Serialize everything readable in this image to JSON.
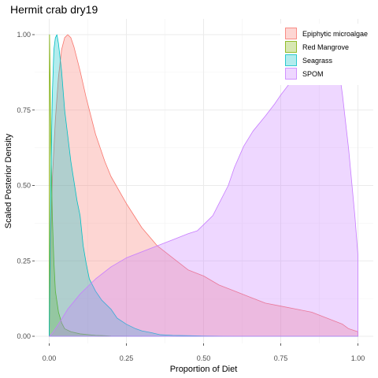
{
  "chart_data": {
    "type": "area",
    "title": "Hermit crab dry19",
    "xlabel": "Proportion of Diet",
    "ylabel": "Scaled Posterior Density",
    "xlim": [
      0,
      1
    ],
    "ylim": [
      0,
      1
    ],
    "x_ticks": [
      "0.00",
      "0.25",
      "0.50",
      "0.75",
      "1.00"
    ],
    "y_ticks": [
      "0.00",
      "0.25",
      "0.50",
      "0.75",
      "1.00"
    ],
    "grid": true,
    "legend_position": "top-right",
    "series": [
      {
        "name": "Epiphytic microalgae",
        "fill": "#f8766d",
        "points": [
          [
            0,
            0
          ],
          [
            0.005,
            0.33
          ],
          [
            0.01,
            0.52
          ],
          [
            0.02,
            0.72
          ],
          [
            0.03,
            0.86
          ],
          [
            0.04,
            0.95
          ],
          [
            0.05,
            0.99
          ],
          [
            0.06,
            1.0
          ],
          [
            0.07,
            0.99
          ],
          [
            0.08,
            0.96
          ],
          [
            0.1,
            0.88
          ],
          [
            0.12,
            0.79
          ],
          [
            0.15,
            0.67
          ],
          [
            0.18,
            0.58
          ],
          [
            0.2,
            0.53
          ],
          [
            0.25,
            0.44
          ],
          [
            0.3,
            0.36
          ],
          [
            0.35,
            0.3
          ],
          [
            0.4,
            0.26
          ],
          [
            0.45,
            0.22
          ],
          [
            0.5,
            0.2
          ],
          [
            0.55,
            0.17
          ],
          [
            0.6,
            0.15
          ],
          [
            0.65,
            0.13
          ],
          [
            0.7,
            0.11
          ],
          [
            0.75,
            0.1
          ],
          [
            0.8,
            0.09
          ],
          [
            0.85,
            0.08
          ],
          [
            0.9,
            0.06
          ],
          [
            0.95,
            0.04
          ],
          [
            0.97,
            0.025
          ],
          [
            1.0,
            0.015
          ]
        ]
      },
      {
        "name": "Red Mangrove",
        "fill": "#7cae00",
        "points": [
          [
            0,
            0
          ],
          [
            0.001,
            1.0
          ],
          [
            0.003,
            0.85
          ],
          [
            0.006,
            0.6
          ],
          [
            0.01,
            0.4
          ],
          [
            0.015,
            0.25
          ],
          [
            0.02,
            0.15
          ],
          [
            0.03,
            0.08
          ],
          [
            0.04,
            0.045
          ],
          [
            0.05,
            0.025
          ],
          [
            0.07,
            0.015
          ],
          [
            0.1,
            0.008
          ],
          [
            0.15,
            0.003
          ],
          [
            0.2,
            0.001
          ],
          [
            0.3,
            0
          ]
        ]
      },
      {
        "name": "Seagrass",
        "fill": "#00bfc4",
        "points": [
          [
            0,
            0
          ],
          [
            0.005,
            0.5
          ],
          [
            0.01,
            0.8
          ],
          [
            0.015,
            0.95
          ],
          [
            0.02,
            0.99
          ],
          [
            0.025,
            1.0
          ],
          [
            0.03,
            0.97
          ],
          [
            0.04,
            0.88
          ],
          [
            0.05,
            0.75
          ],
          [
            0.07,
            0.58
          ],
          [
            0.09,
            0.45
          ],
          [
            0.1,
            0.4
          ],
          [
            0.11,
            0.3
          ],
          [
            0.12,
            0.24
          ],
          [
            0.13,
            0.19
          ],
          [
            0.15,
            0.15
          ],
          [
            0.17,
            0.12
          ],
          [
            0.2,
            0.09
          ],
          [
            0.22,
            0.06
          ],
          [
            0.25,
            0.04
          ],
          [
            0.28,
            0.025
          ],
          [
            0.3,
            0.018
          ],
          [
            0.33,
            0.012
          ],
          [
            0.36,
            0.005
          ],
          [
            0.4,
            0.003
          ],
          [
            0.5,
            0.001
          ],
          [
            0.6,
            0
          ],
          [
            0.7,
            0
          ],
          [
            0.8,
            0
          ],
          [
            0.9,
            0
          ],
          [
            1.0,
            0
          ]
        ]
      },
      {
        "name": "SPOM",
        "fill": "#c77cff",
        "points": [
          [
            0,
            0
          ],
          [
            0.01,
            0.01
          ],
          [
            0.03,
            0.04
          ],
          [
            0.06,
            0.09
          ],
          [
            0.1,
            0.14
          ],
          [
            0.15,
            0.19
          ],
          [
            0.2,
            0.23
          ],
          [
            0.25,
            0.26
          ],
          [
            0.3,
            0.28
          ],
          [
            0.35,
            0.3
          ],
          [
            0.4,
            0.32
          ],
          [
            0.45,
            0.34
          ],
          [
            0.48,
            0.35
          ],
          [
            0.5,
            0.37
          ],
          [
            0.53,
            0.4
          ],
          [
            0.55,
            0.44
          ],
          [
            0.58,
            0.5
          ],
          [
            0.6,
            0.56
          ],
          [
            0.63,
            0.63
          ],
          [
            0.66,
            0.68
          ],
          [
            0.7,
            0.73
          ],
          [
            0.73,
            0.77
          ],
          [
            0.75,
            0.8
          ],
          [
            0.78,
            0.84
          ],
          [
            0.8,
            0.88
          ],
          [
            0.82,
            0.92
          ],
          [
            0.85,
            0.96
          ],
          [
            0.88,
            0.99
          ],
          [
            0.9,
            1.0
          ],
          [
            0.93,
            0.95
          ],
          [
            0.95,
            0.8
          ],
          [
            0.97,
            0.62
          ],
          [
            0.99,
            0.4
          ],
          [
            1.0,
            0.27
          ]
        ]
      }
    ]
  }
}
